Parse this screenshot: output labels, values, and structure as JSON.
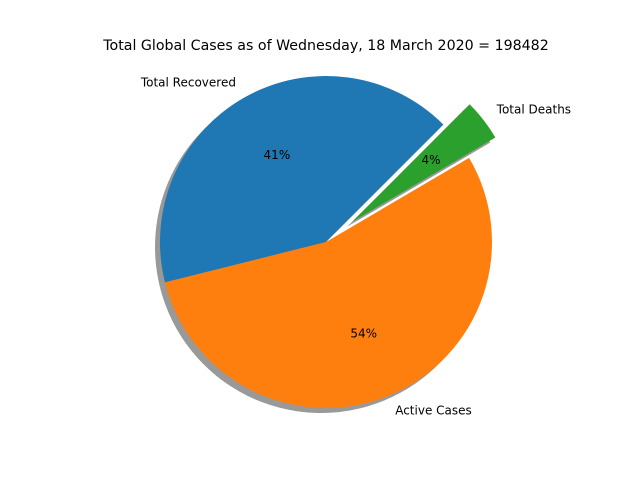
{
  "chart_data": {
    "type": "pie",
    "title": "Total Global Cases as of Wednesday, 18 March 2020 = 198482",
    "categories": [
      "Total Recovered",
      "Active Cases",
      "Total Deaths"
    ],
    "percent_labels": [
      "41%",
      "54%",
      "4%"
    ],
    "values": [
      41,
      54,
      4
    ],
    "colors": [
      "#1f77b4",
      "#ff7f0e",
      "#2ca02c"
    ],
    "explode": [
      0,
      0,
      0.2
    ],
    "shadow": true,
    "start_angle": 45,
    "legend": "none"
  }
}
